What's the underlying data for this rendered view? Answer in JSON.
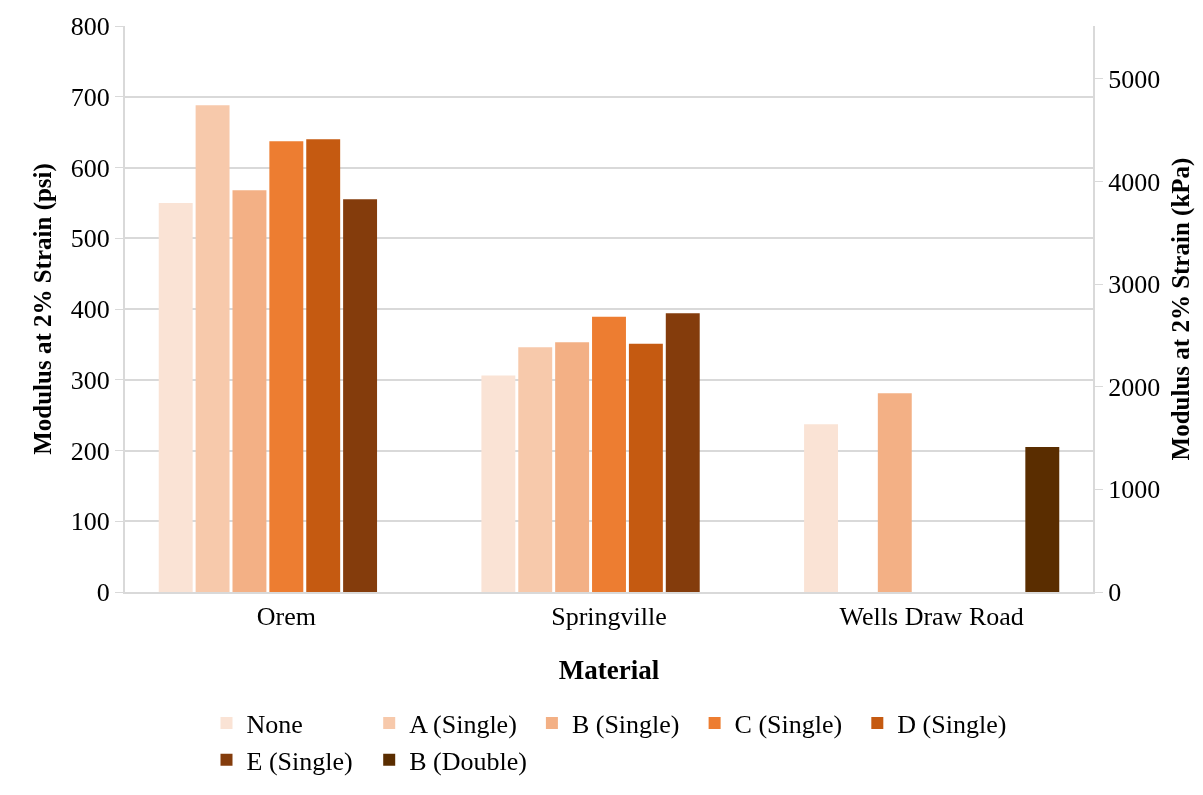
{
  "chart_data": {
    "type": "bar",
    "xlabel": "Material",
    "ylabel": "Modulus at 2% Strain (psi)",
    "y2label": "Modulus at 2% Strain (kPa)",
    "categories": [
      "Orem",
      "Springville",
      "Wells Draw Road"
    ],
    "series": [
      {
        "name": "None",
        "color": "#fae3d5",
        "values": [
          550,
          306,
          237
        ]
      },
      {
        "name": "A (Single)",
        "color": "#f7c9ab",
        "values": [
          688,
          346,
          null
        ]
      },
      {
        "name": "B (Single)",
        "color": "#f3b085",
        "values": [
          568,
          353,
          281
        ]
      },
      {
        "name": "C (Single)",
        "color": "#ed7d31",
        "values": [
          637,
          389,
          null
        ]
      },
      {
        "name": "D (Single)",
        "color": "#c55a11",
        "values": [
          640,
          351,
          null
        ]
      },
      {
        "name": "E (Single)",
        "color": "#843c0c",
        "values": [
          555,
          394,
          null
        ]
      },
      {
        "name": "B (Double)",
        "color": "#5a2d00",
        "values": [
          null,
          null,
          205
        ]
      }
    ],
    "ylim": [
      0,
      800
    ],
    "yticks": [
      0,
      100,
      200,
      300,
      400,
      500,
      600,
      700,
      800
    ],
    "y2lim": [
      0,
      5516
    ],
    "y2ticks": [
      0,
      1000,
      2000,
      3000,
      4000,
      5000
    ],
    "grid": "y",
    "legend": "bottom"
  }
}
